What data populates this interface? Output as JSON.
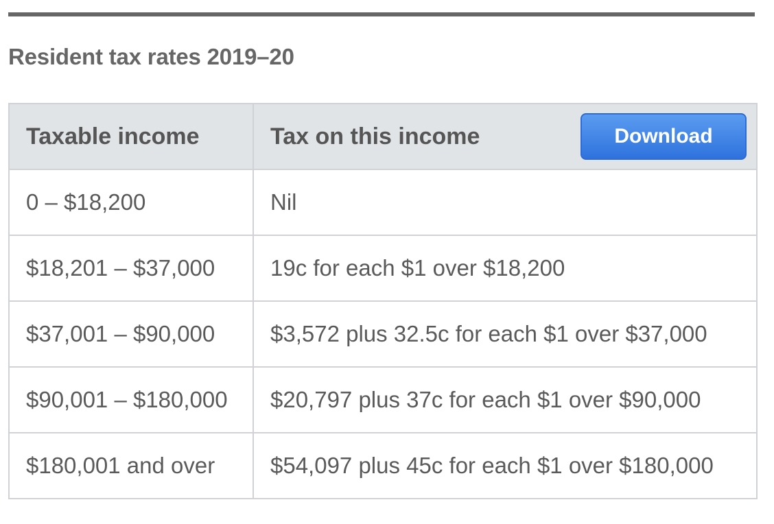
{
  "caption": "Resident tax rates 2019–20",
  "table": {
    "headers": {
      "income": "Taxable income",
      "tax": "Tax on this income"
    },
    "download_label": "Download",
    "rows": [
      {
        "income": "0 – $18,200",
        "tax": "Nil"
      },
      {
        "income": "$18,201 – $37,000",
        "tax": "19c for each $1 over $18,200"
      },
      {
        "income": "$37,001 – $90,000",
        "tax": "$3,572 plus 32.5c for each $1 over $37,000"
      },
      {
        "income": "$90,001 – $180,000",
        "tax": "$20,797 plus 37c for each $1 over $90,000"
      },
      {
        "income": "$180,001 and over",
        "tax": "$54,097 plus 45c for each $1 over $180,000"
      }
    ]
  },
  "colors": {
    "accent": "#2f72dd",
    "header_bg": "#e1e4e6",
    "text": "#555555"
  }
}
